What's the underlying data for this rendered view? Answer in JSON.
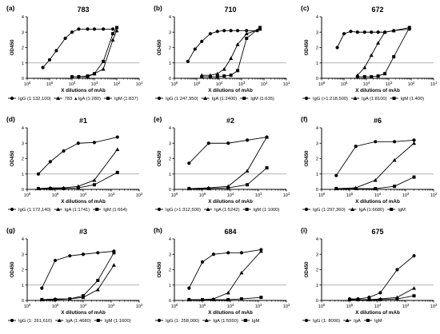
{
  "colors": {
    "line": "#000000",
    "threshold": "#9a9a9a"
  },
  "common": {
    "xlabel": "X dilutions of mAb",
    "ylabel": "OD450",
    "x_scale": "log",
    "x_reversed": true,
    "xlim": [
      1000000,
      10
    ],
    "ylim": [
      0,
      4
    ],
    "yticks": [
      0,
      1,
      2,
      3,
      4
    ],
    "threshold": 1
  },
  "chart_data": [
    {
      "letter": "(a)",
      "title": "783",
      "type": "line",
      "xticks": [
        "10⁶",
        "10⁵",
        "10⁴",
        "10³",
        "10²",
        "10¹"
      ],
      "series": [
        {
          "name": "IgG (1:132,100)",
          "marker": "circle",
          "points": [
            [
              200000,
              0.7
            ],
            [
              100000,
              1.2
            ],
            [
              50000,
              1.8
            ],
            [
              20000,
              2.6
            ],
            [
              10000,
              3.0
            ],
            [
              5000,
              3.2
            ],
            [
              2000,
              3.2
            ],
            [
              1000,
              3.2
            ],
            [
              400,
              3.2
            ],
            [
              150,
              3.2
            ]
          ]
        },
        {
          "name": "783 ▲IgA (1:280)",
          "marker": "triangle",
          "points": [
            [
              10000,
              0.1
            ],
            [
              5000,
              0.1
            ],
            [
              2000,
              0.1
            ],
            [
              1000,
              0.3
            ],
            [
              400,
              0.6
            ],
            [
              150,
              2.5
            ],
            [
              100,
              3.1
            ]
          ]
        },
        {
          "name": "IgM (1:837)",
          "marker": "square",
          "points": [
            [
              10000,
              0.1
            ],
            [
              5000,
              0.1
            ],
            [
              2000,
              0.15
            ],
            [
              1000,
              0.3
            ],
            [
              400,
              1.1
            ],
            [
              150,
              2.9
            ],
            [
              100,
              3.3
            ]
          ]
        }
      ]
    },
    {
      "letter": "(b)",
      "title": "710",
      "type": "line",
      "xticks": [
        "10⁶",
        "10⁵",
        "10⁴",
        "10³",
        "10²",
        "10¹"
      ],
      "series": [
        {
          "name": "IgG (1:247,950)",
          "marker": "circle",
          "points": [
            [
              250000,
              1.1
            ],
            [
              120000,
              1.9
            ],
            [
              60000,
              2.4
            ],
            [
              25000,
              2.9
            ],
            [
              12000,
              3.05
            ],
            [
              6000,
              3.1
            ],
            [
              3000,
              3.1
            ],
            [
              1500,
              3.1
            ],
            [
              600,
              3.1
            ],
            [
              200,
              3.1
            ]
          ]
        },
        {
          "name": "IgA (1:2400)",
          "marker": "triangle",
          "points": [
            [
              60000,
              0.2
            ],
            [
              25000,
              0.2
            ],
            [
              12000,
              0.3
            ],
            [
              6000,
              0.6
            ],
            [
              3000,
              1.3
            ],
            [
              1500,
              2.2
            ],
            [
              600,
              2.9
            ],
            [
              150,
              3.2
            ]
          ]
        },
        {
          "name": "IgM (1:635)",
          "marker": "square",
          "points": [
            [
              60000,
              0.1
            ],
            [
              25000,
              0.1
            ],
            [
              12000,
              0.1
            ],
            [
              6000,
              0.15
            ],
            [
              3000,
              0.2
            ],
            [
              1500,
              0.5
            ],
            [
              600,
              2.6
            ],
            [
              150,
              3.3
            ]
          ]
        }
      ]
    },
    {
      "letter": "(c)",
      "title": "672",
      "type": "line",
      "xticks": [
        "10⁶",
        "10⁵",
        "10⁴",
        "10³",
        "10²",
        "10¹"
      ],
      "series": [
        {
          "name": "IgG (>1:218,500)",
          "marker": "circle",
          "points": [
            [
              200000,
              2.0
            ],
            [
              100000,
              2.9
            ],
            [
              50000,
              3.05
            ],
            [
              25000,
              3.0
            ],
            [
              12000,
              3.0
            ],
            [
              6000,
              3.0
            ],
            [
              3000,
              3.0
            ],
            [
              1500,
              3.0
            ],
            [
              600,
              3.1
            ],
            [
              120,
              3.2
            ]
          ]
        },
        {
          "name": "IgA (1:8100)",
          "marker": "triangle",
          "points": [
            [
              25000,
              0.2
            ],
            [
              12000,
              0.7
            ],
            [
              6000,
              1.5
            ],
            [
              3000,
              2.3
            ],
            [
              1500,
              3.0
            ],
            [
              600,
              3.1
            ],
            [
              120,
              3.3
            ]
          ]
        },
        {
          "name": "IgM (1:400)",
          "marker": "square",
          "points": [
            [
              25000,
              0.1
            ],
            [
              12000,
              0.1
            ],
            [
              6000,
              0.1
            ],
            [
              3000,
              0.15
            ],
            [
              1500,
              0.3
            ],
            [
              600,
              1.4
            ],
            [
              120,
              3.3
            ]
          ]
        }
      ]
    },
    {
      "letter": "(d)",
      "title": "#1",
      "type": "line",
      "xticks": [
        "10⁶",
        "10⁵",
        "10⁴",
        "10³",
        "10²"
      ],
      "series": [
        {
          "name": "IgG (1:172,140)",
          "marker": "circle",
          "points": [
            [
              400000,
              1.0
            ],
            [
              150000,
              1.8
            ],
            [
              50000,
              2.5
            ],
            [
              15000,
              3.0
            ],
            [
              4000,
              3.05
            ],
            [
              600,
              3.4
            ]
          ]
        },
        {
          "name": "IgA (1:1741)",
          "marker": "triangle",
          "points": [
            [
              400000,
              0.05
            ],
            [
              150000,
              0.1
            ],
            [
              50000,
              0.1
            ],
            [
              15000,
              0.2
            ],
            [
              4000,
              0.6
            ],
            [
              600,
              2.6
            ]
          ]
        },
        {
          "name": "IgM (1:664)",
          "marker": "square",
          "points": [
            [
              400000,
              0.05
            ],
            [
              150000,
              0.05
            ],
            [
              50000,
              0.05
            ],
            [
              15000,
              0.1
            ],
            [
              4000,
              0.3
            ],
            [
              600,
              1.1
            ]
          ]
        }
      ]
    },
    {
      "letter": "(e)",
      "title": "#2",
      "type": "line",
      "xticks": [
        "10⁶",
        "10⁵",
        "10⁴",
        "10³",
        "10²"
      ],
      "series": [
        {
          "name": "IgG (>1:312,500)",
          "marker": "circle",
          "points": [
            [
              300000,
              1.7
            ],
            [
              60000,
              3.0
            ],
            [
              12000,
              3.0
            ],
            [
              2500,
              3.2
            ],
            [
              500,
              3.4
            ]
          ]
        },
        {
          "name": "IgA (1:5242)",
          "marker": "triangle",
          "points": [
            [
              300000,
              0.05
            ],
            [
              60000,
              0.1
            ],
            [
              12000,
              0.2
            ],
            [
              2500,
              1.2
            ],
            [
              500,
              3.4
            ]
          ]
        },
        {
          "name": "IgM (1:1000)",
          "marker": "square",
          "points": [
            [
              300000,
              0.05
            ],
            [
              60000,
              0.05
            ],
            [
              12000,
              0.1
            ],
            [
              2500,
              0.3
            ],
            [
              500,
              1.4
            ]
          ]
        }
      ]
    },
    {
      "letter": "(f)",
      "title": "#6",
      "type": "line",
      "xticks": [
        "10⁶",
        "10⁵",
        "10⁴",
        "10³",
        "10²"
      ],
      "series": [
        {
          "name": "IgG (1:297,360)",
          "marker": "circle",
          "points": [
            [
              300000,
              0.9
            ],
            [
              60000,
              2.8
            ],
            [
              12000,
              3.1
            ],
            [
              2500,
              3.1
            ],
            [
              500,
              3.2
            ]
          ]
        },
        {
          "name": "IgA (1:6680)",
          "marker": "triangle",
          "points": [
            [
              300000,
              0.05
            ],
            [
              60000,
              0.1
            ],
            [
              12000,
              0.6
            ],
            [
              2500,
              1.9
            ],
            [
              500,
              3.0
            ]
          ]
        },
        {
          "name": "IgM",
          "marker": "square",
          "points": [
            [
              300000,
              0.05
            ],
            [
              60000,
              0.05
            ],
            [
              12000,
              0.05
            ],
            [
              2500,
              0.2
            ],
            [
              500,
              0.8
            ]
          ]
        }
      ]
    },
    {
      "letter": "(g)",
      "title": "#3",
      "type": "line",
      "xticks": [
        "10⁶",
        "10⁵",
        "10⁴",
        "10³",
        "10²"
      ],
      "series": [
        {
          "name": "IgG (1: 261,610)",
          "marker": "circle",
          "points": [
            [
              300000,
              0.8
            ],
            [
              100000,
              2.6
            ],
            [
              30000,
              2.9
            ],
            [
              10000,
              3.0
            ],
            [
              3000,
              3.1
            ],
            [
              800,
              3.2
            ]
          ]
        },
        {
          "name": "IgA (1:4680)",
          "marker": "triangle",
          "points": [
            [
              300000,
              0.05
            ],
            [
              100000,
              0.1
            ],
            [
              30000,
              0.1
            ],
            [
              10000,
              0.2
            ],
            [
              3000,
              0.7
            ],
            [
              800,
              2.3
            ]
          ]
        },
        {
          "name": "IgM (1:1600)",
          "marker": "square",
          "points": [
            [
              300000,
              0.05
            ],
            [
              100000,
              0.05
            ],
            [
              30000,
              0.1
            ],
            [
              10000,
              0.3
            ],
            [
              3000,
              1.3
            ],
            [
              800,
              3.1
            ]
          ]
        }
      ]
    },
    {
      "letter": "(h)",
      "title": "684",
      "type": "line",
      "xticks": [
        "10⁶",
        "10⁵",
        "10⁴",
        "10³",
        "10²"
      ],
      "series": [
        {
          "name": "IgG (1: 258,000)",
          "marker": "circle",
          "points": [
            [
              300000,
              0.8
            ],
            [
              100000,
              2.5
            ],
            [
              40000,
              3.0
            ],
            [
              12000,
              3.1
            ],
            [
              4000,
              3.1
            ],
            [
              800,
              3.3
            ]
          ]
        },
        {
          "name": "IgA (1:5550)",
          "marker": "triangle",
          "points": [
            [
              300000,
              0.05
            ],
            [
              100000,
              0.05
            ],
            [
              40000,
              0.1
            ],
            [
              12000,
              0.5
            ],
            [
              4000,
              1.8
            ],
            [
              800,
              3.2
            ]
          ]
        },
        {
          "name": "IgM",
          "marker": "square",
          "points": [
            [
              300000,
              0.05
            ],
            [
              100000,
              0.05
            ],
            [
              40000,
              0.05
            ],
            [
              12000,
              0.05
            ],
            [
              4000,
              0.1
            ],
            [
              800,
              0.2
            ]
          ]
        }
      ]
    },
    {
      "letter": "(i)",
      "title": "675",
      "type": "line",
      "xticks": [
        "10⁶",
        "10⁵",
        "10⁴",
        "10³",
        "10²"
      ],
      "series": [
        {
          "name": "IgG (1: 8000)",
          "marker": "circle",
          "points": [
            [
              100000,
              0.1
            ],
            [
              50000,
              0.1
            ],
            [
              20000,
              0.2
            ],
            [
              8000,
              0.5
            ],
            [
              2000,
              2.0
            ],
            [
              500,
              2.9
            ]
          ]
        },
        {
          "name": "IgA",
          "marker": "triangle",
          "points": [
            [
              100000,
              0.05
            ],
            [
              50000,
              0.05
            ],
            [
              20000,
              0.05
            ],
            [
              8000,
              0.1
            ],
            [
              2000,
              0.2
            ],
            [
              500,
              0.8
            ]
          ]
        },
        {
          "name": "IgM",
          "marker": "square",
          "points": [
            [
              100000,
              0.05
            ],
            [
              50000,
              0.05
            ],
            [
              20000,
              0.05
            ],
            [
              8000,
              0.05
            ],
            [
              2000,
              0.1
            ],
            [
              500,
              0.3
            ]
          ]
        }
      ]
    }
  ]
}
